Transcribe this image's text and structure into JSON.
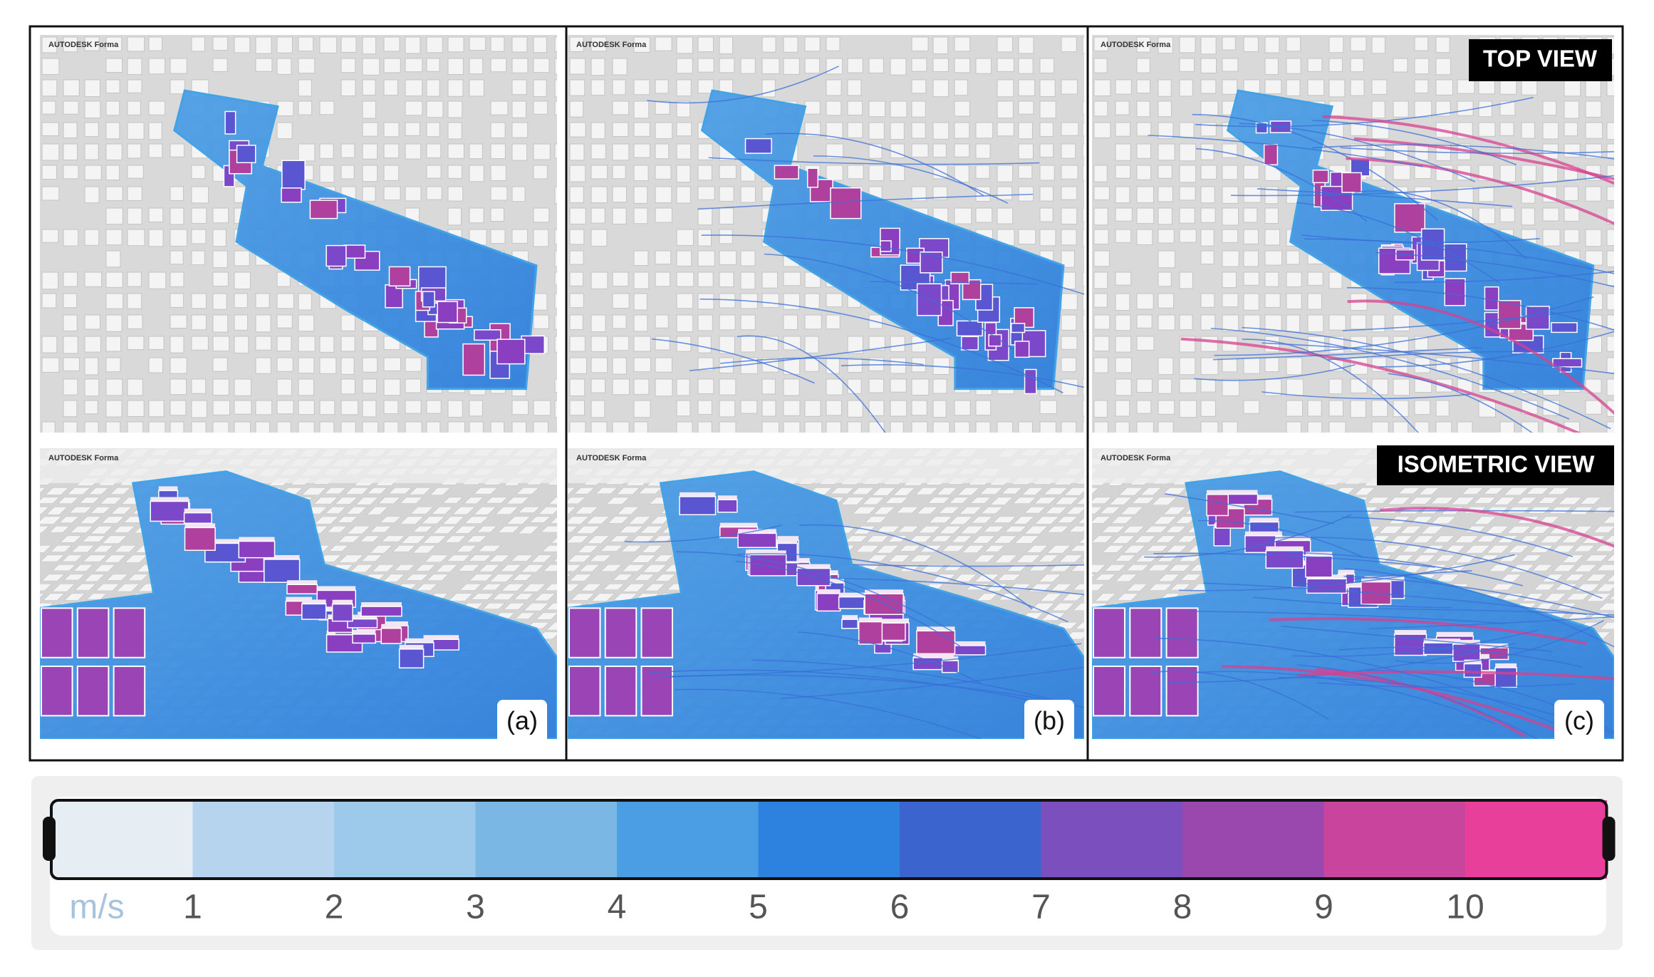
{
  "panels": [
    {
      "label": "(a)",
      "top_watermark": "AUTODESK Forma",
      "iso_watermark": "AUTODESK Forma"
    },
    {
      "label": "(b)",
      "top_watermark": "AUTODESK Forma",
      "iso_watermark": "AUTODESK Forma"
    },
    {
      "label": "(c)",
      "top_watermark": "AUTODESK Forma",
      "iso_watermark": "AUTODESK Forma"
    }
  ],
  "view_labels": {
    "top": "TOP VIEW",
    "isometric": "ISOMETRIC VIEW"
  },
  "legend": {
    "unit": "m/s",
    "ticks": [
      1,
      2,
      3,
      4,
      5,
      6,
      7,
      8,
      9,
      10
    ],
    "colors": [
      "#e6edf3",
      "#b6d4ee",
      "#9dc9eb",
      "#7bb7e5",
      "#4b9ee3",
      "#2d82e0",
      "#3b64cf",
      "#7c4fbf",
      "#9a48ad",
      "#c9449d",
      "#e8409a"
    ]
  }
}
